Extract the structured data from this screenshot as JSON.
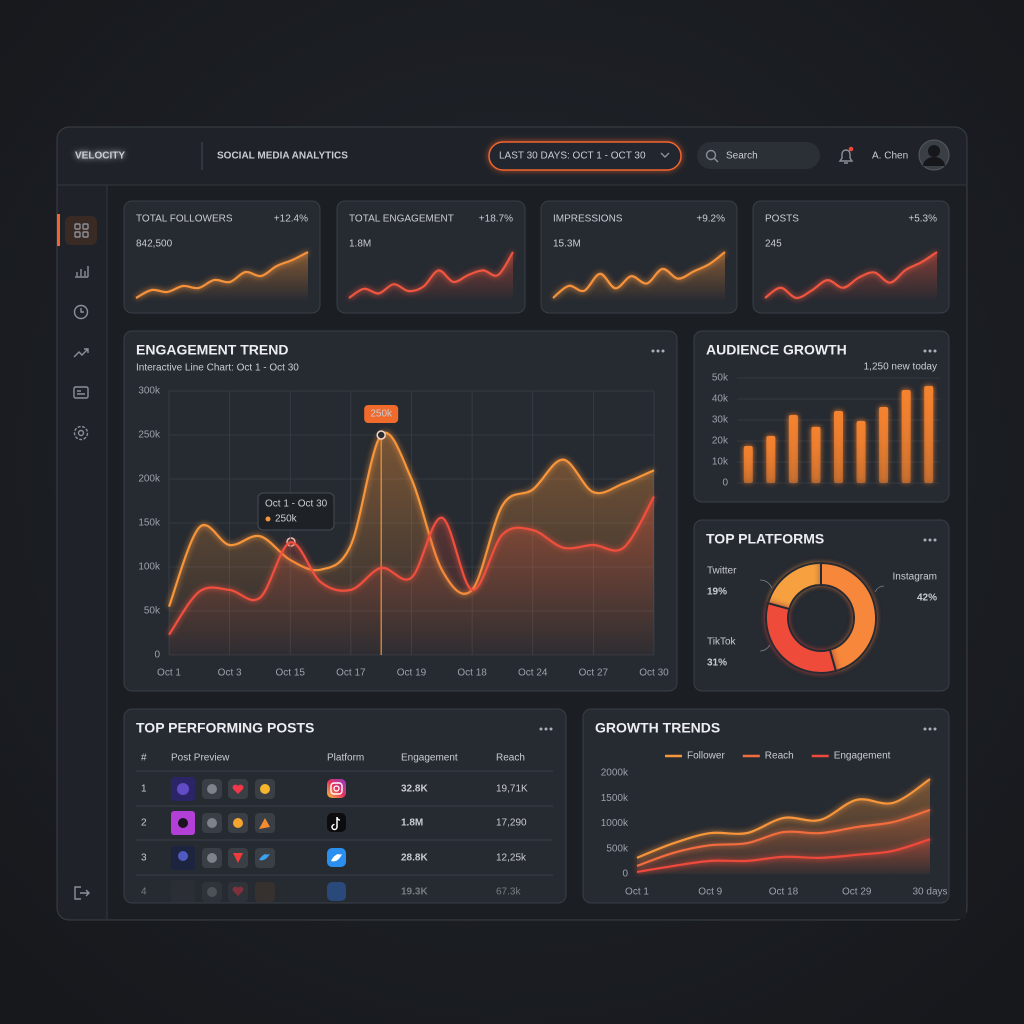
{
  "header": {
    "logo": "VELOCITY",
    "title": "SOCIAL MEDIA ANALYTICS",
    "date_range": "LAST 30 DAYS: OCT 1 - OCT 30",
    "search_placeholder": "Search",
    "user": "A. Chen"
  },
  "kpis": [
    {
      "label": "TOTAL FOLLOWERS",
      "change": "+12.4%",
      "change_color": "#6ad36f",
      "value": "842,500",
      "color": "#f5923a",
      "sparkline": [
        10,
        14,
        13,
        16,
        15,
        19,
        18,
        23,
        21,
        26,
        29,
        33
      ]
    },
    {
      "label": "TOTAL ENGAGEMENT",
      "change": "+18.7%",
      "change_color": "#ef5a4a",
      "value": "1.8M",
      "color": "#f0553f",
      "sparkline": [
        10,
        14,
        12,
        16,
        13,
        15,
        22,
        17,
        20,
        22,
        20,
        30
      ]
    },
    {
      "label": "IMPRESSIONS",
      "change": "+9.2%",
      "change_color": "#6ad36f",
      "value": "15.3M",
      "color": "#f5923a",
      "sparkline": [
        10,
        15,
        13,
        20,
        14,
        19,
        16,
        22,
        18,
        21,
        24,
        29
      ]
    },
    {
      "label": "POSTS",
      "change": "+5.3%",
      "change_color": "#ef5a4a",
      "value": "245",
      "color": "#f0553f",
      "sparkline": [
        12,
        16,
        12,
        15,
        19,
        16,
        20,
        22,
        18,
        23,
        26,
        30
      ]
    }
  ],
  "chart_data": [
    {
      "type": "line",
      "title": "ENGAGEMENT TREND",
      "subtitle": "Interactive Line Chart: Oct 1 - Oct 30",
      "categories": [
        "Oct 1",
        null,
        "Oct 3",
        null,
        "Oct 15",
        null,
        "Oct 17",
        null,
        "Oct 19",
        null,
        "Oct 18",
        null,
        "Oct 24",
        null,
        "Oct 27",
        null,
        "Oct 30"
      ],
      "series": [
        {
          "color": "#f7953b",
          "values": [
            55000,
            145000,
            125000,
            135000,
            108000,
            97000,
            125000,
            250000,
            200000,
            97000,
            74000,
            170000,
            188000,
            222000,
            185000,
            195000,
            210000
          ],
          "value_labels": [
            null,
            null,
            null,
            null,
            null,
            null,
            null,
            "250k",
            null,
            null,
            null,
            null,
            null,
            null,
            null,
            null,
            null
          ]
        },
        {
          "color": "#f0503c",
          "values": [
            23000,
            72000,
            74000,
            65000,
            128000,
            83000,
            74000,
            99000,
            88000,
            156000,
            74000,
            137000,
            142000,
            122000,
            125000,
            122000,
            180000
          ]
        }
      ],
      "ylim": [
        0,
        300000
      ],
      "yticks": [
        0,
        {
          "value": 50000,
          "label": "50k"
        },
        {
          "value": 100000,
          "label": "100k"
        },
        {
          "value": 150000,
          "label": "150k"
        },
        {
          "value": 200000,
          "label": "200k"
        },
        {
          "value": 250000,
          "label": "250k"
        },
        {
          "value": 300000,
          "label": "300k"
        }
      ],
      "grid": true,
      "tooltip": {
        "title": "Oct 1 - Oct 30",
        "label": "250k"
      }
    },
    {
      "type": "bar",
      "title": "AUDIENCE GROWTH",
      "subtitle": "1,250 new today",
      "categories": [
        null,
        null,
        null,
        null,
        null,
        null,
        null,
        null,
        null
      ],
      "values": [
        17600,
        22400,
        32400,
        26700,
        34300,
        29500,
        36200,
        44300,
        46200
      ],
      "color": "#f5822f",
      "ylim": [
        0,
        50000
      ],
      "yticks": [
        0,
        {
          "value": 10000,
          "label": "10k"
        },
        {
          "value": 20000,
          "label": "20k"
        },
        {
          "value": 30000,
          "label": "30k"
        },
        {
          "value": 40000,
          "label": "40k"
        },
        {
          "value": 50000,
          "label": "50k"
        }
      ],
      "grid": true
    },
    {
      "type": "pie",
      "title": "TOP PLATFORMS",
      "categories": [
        "Twitter",
        "Instagram",
        "TikTok"
      ],
      "values": [
        19,
        42,
        31
      ],
      "value_labels": [
        "19%",
        "42%",
        "31%"
      ],
      "colors": [
        "#f7a03f",
        "#f7873a",
        "#ef4c3a"
      ]
    },
    {
      "type": "line",
      "title": "GROWTH TRENDS",
      "categories": [
        "Oct 1",
        null,
        "Oct 9",
        null,
        "Oct 18",
        null,
        "Oct 29",
        null,
        "30 days"
      ],
      "series": [
        {
          "name": "Follower",
          "color": "#f7953b",
          "values": [
            320000,
            610000,
            810000,
            810000,
            1110000,
            1070000,
            1470000,
            1410000,
            1880000
          ]
        },
        {
          "name": "Reach",
          "color": "#f26d3d",
          "values": [
            160000,
            420000,
            570000,
            610000,
            830000,
            810000,
            930000,
            1030000,
            1270000
          ]
        },
        {
          "name": "Engagement",
          "color": "#ee4a3b",
          "values": [
            40000,
            160000,
            260000,
            260000,
            340000,
            320000,
            380000,
            460000,
            690000
          ]
        }
      ],
      "ylim": [
        0,
        2000000
      ],
      "yticks": [
        0,
        {
          "value": 500000,
          "label": "500k"
        },
        {
          "value": 1000000,
          "label": "1000k"
        },
        {
          "value": 1500000,
          "label": "1500k"
        },
        {
          "value": 2000000,
          "label": "2000k"
        }
      ],
      "grid": false,
      "legend": "top"
    }
  ],
  "top_posts": {
    "title": "TOP PERFORMING POSTS",
    "columns": [
      "#",
      "Post Preview",
      "Platform",
      "Engagement",
      "Reach"
    ],
    "rows": [
      [
        "1",
        "32.8K",
        "19,71K"
      ],
      [
        "2",
        "1.8M",
        "17,290"
      ],
      [
        "3",
        "28.8K",
        "12,25k"
      ],
      [
        "4",
        "19.3K",
        "67.3k"
      ]
    ]
  }
}
